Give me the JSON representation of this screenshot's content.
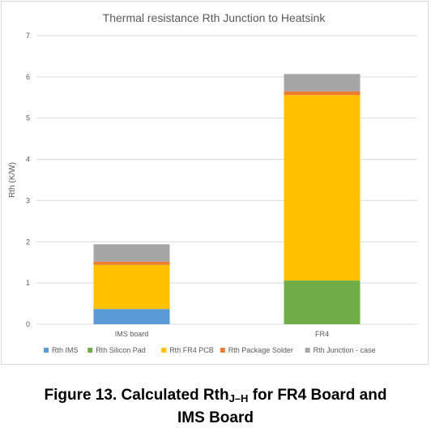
{
  "chart_data": {
    "type": "bar",
    "stacked": true,
    "title": "Thermal resistance Rth Junction to Heatsink",
    "xlabel": "",
    "ylabel": "Rth (K/W)",
    "ylim": [
      0,
      7
    ],
    "yticks": [
      0,
      1,
      2,
      3,
      4,
      5,
      6,
      7
    ],
    "grid": true,
    "legend_position": "bottom",
    "categories": [
      "IMS board",
      "FR4"
    ],
    "series": [
      {
        "name": "Rth IMS",
        "color": "#5b9bd5",
        "values": [
          0.37,
          0
        ]
      },
      {
        "name": "Rth Silicon Pad",
        "color": "#70ad47",
        "values": [
          0,
          1.06
        ]
      },
      {
        "name": "Rth FR4 PCB",
        "color": "#ffc000",
        "values": [
          1.07,
          4.5
        ]
      },
      {
        "name": "Rth Package Solder",
        "color": "#ed7d31",
        "values": [
          0.08,
          0.09
        ]
      },
      {
        "name": "Rth Junction - case",
        "color": "#a5a5a5",
        "values": [
          0.42,
          0.42
        ]
      }
    ]
  },
  "caption": {
    "main": "Figure 13. Calculated Rth",
    "subscript": "J–H",
    "rest": " for FR4 Board and",
    "line2": "IMS Board"
  }
}
